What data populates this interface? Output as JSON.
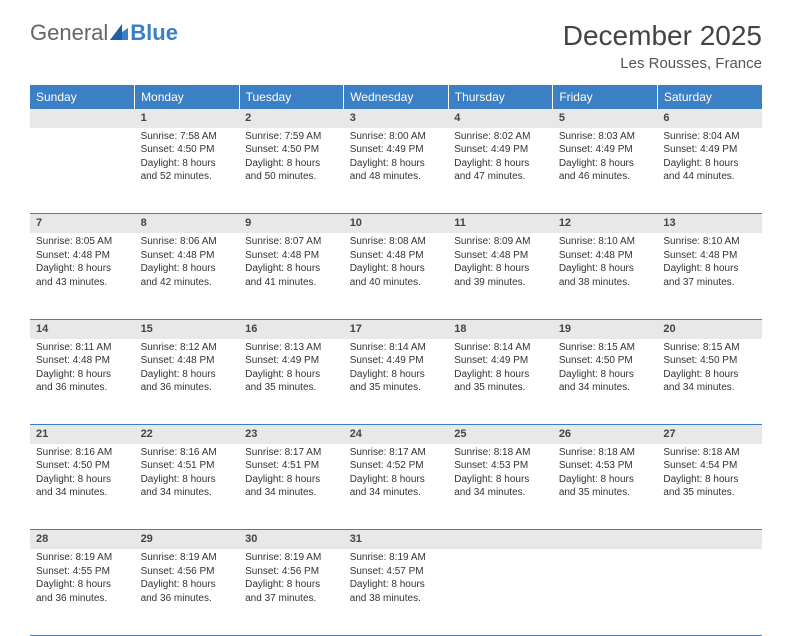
{
  "logo": {
    "part1": "General",
    "part2": "Blue"
  },
  "title": "December 2025",
  "location": "Les Rousses, France",
  "headers": [
    "Sunday",
    "Monday",
    "Tuesday",
    "Wednesday",
    "Thursday",
    "Friday",
    "Saturday"
  ],
  "colors": {
    "header_bg": "#3b7fc4",
    "header_text": "#ffffff",
    "daynum_bg": "#e8e8e8",
    "rule": "#3b7fc4"
  },
  "weeks": [
    {
      "nums": [
        "",
        "1",
        "2",
        "3",
        "4",
        "5",
        "6"
      ],
      "cells": [
        null,
        {
          "sr": "7:58 AM",
          "ss": "4:50 PM",
          "dl": "8 hours and 52 minutes."
        },
        {
          "sr": "7:59 AM",
          "ss": "4:50 PM",
          "dl": "8 hours and 50 minutes."
        },
        {
          "sr": "8:00 AM",
          "ss": "4:49 PM",
          "dl": "8 hours and 48 minutes."
        },
        {
          "sr": "8:02 AM",
          "ss": "4:49 PM",
          "dl": "8 hours and 47 minutes."
        },
        {
          "sr": "8:03 AM",
          "ss": "4:49 PM",
          "dl": "8 hours and 46 minutes."
        },
        {
          "sr": "8:04 AM",
          "ss": "4:49 PM",
          "dl": "8 hours and 44 minutes."
        }
      ]
    },
    {
      "nums": [
        "7",
        "8",
        "9",
        "10",
        "11",
        "12",
        "13"
      ],
      "cells": [
        {
          "sr": "8:05 AM",
          "ss": "4:48 PM",
          "dl": "8 hours and 43 minutes."
        },
        {
          "sr": "8:06 AM",
          "ss": "4:48 PM",
          "dl": "8 hours and 42 minutes."
        },
        {
          "sr": "8:07 AM",
          "ss": "4:48 PM",
          "dl": "8 hours and 41 minutes."
        },
        {
          "sr": "8:08 AM",
          "ss": "4:48 PM",
          "dl": "8 hours and 40 minutes."
        },
        {
          "sr": "8:09 AM",
          "ss": "4:48 PM",
          "dl": "8 hours and 39 minutes."
        },
        {
          "sr": "8:10 AM",
          "ss": "4:48 PM",
          "dl": "8 hours and 38 minutes."
        },
        {
          "sr": "8:10 AM",
          "ss": "4:48 PM",
          "dl": "8 hours and 37 minutes."
        }
      ]
    },
    {
      "nums": [
        "14",
        "15",
        "16",
        "17",
        "18",
        "19",
        "20"
      ],
      "cells": [
        {
          "sr": "8:11 AM",
          "ss": "4:48 PM",
          "dl": "8 hours and 36 minutes."
        },
        {
          "sr": "8:12 AM",
          "ss": "4:48 PM",
          "dl": "8 hours and 36 minutes."
        },
        {
          "sr": "8:13 AM",
          "ss": "4:49 PM",
          "dl": "8 hours and 35 minutes."
        },
        {
          "sr": "8:14 AM",
          "ss": "4:49 PM",
          "dl": "8 hours and 35 minutes."
        },
        {
          "sr": "8:14 AM",
          "ss": "4:49 PM",
          "dl": "8 hours and 35 minutes."
        },
        {
          "sr": "8:15 AM",
          "ss": "4:50 PM",
          "dl": "8 hours and 34 minutes."
        },
        {
          "sr": "8:15 AM",
          "ss": "4:50 PM",
          "dl": "8 hours and 34 minutes."
        }
      ]
    },
    {
      "nums": [
        "21",
        "22",
        "23",
        "24",
        "25",
        "26",
        "27"
      ],
      "cells": [
        {
          "sr": "8:16 AM",
          "ss": "4:50 PM",
          "dl": "8 hours and 34 minutes."
        },
        {
          "sr": "8:16 AM",
          "ss": "4:51 PM",
          "dl": "8 hours and 34 minutes."
        },
        {
          "sr": "8:17 AM",
          "ss": "4:51 PM",
          "dl": "8 hours and 34 minutes."
        },
        {
          "sr": "8:17 AM",
          "ss": "4:52 PM",
          "dl": "8 hours and 34 minutes."
        },
        {
          "sr": "8:18 AM",
          "ss": "4:53 PM",
          "dl": "8 hours and 34 minutes."
        },
        {
          "sr": "8:18 AM",
          "ss": "4:53 PM",
          "dl": "8 hours and 35 minutes."
        },
        {
          "sr": "8:18 AM",
          "ss": "4:54 PM",
          "dl": "8 hours and 35 minutes."
        }
      ]
    },
    {
      "nums": [
        "28",
        "29",
        "30",
        "31",
        "",
        "",
        ""
      ],
      "cells": [
        {
          "sr": "8:19 AM",
          "ss": "4:55 PM",
          "dl": "8 hours and 36 minutes."
        },
        {
          "sr": "8:19 AM",
          "ss": "4:56 PM",
          "dl": "8 hours and 36 minutes."
        },
        {
          "sr": "8:19 AM",
          "ss": "4:56 PM",
          "dl": "8 hours and 37 minutes."
        },
        {
          "sr": "8:19 AM",
          "ss": "4:57 PM",
          "dl": "8 hours and 38 minutes."
        },
        null,
        null,
        null
      ]
    }
  ],
  "labels": {
    "sunrise": "Sunrise:",
    "sunset": "Sunset:",
    "daylight": "Daylight:"
  }
}
